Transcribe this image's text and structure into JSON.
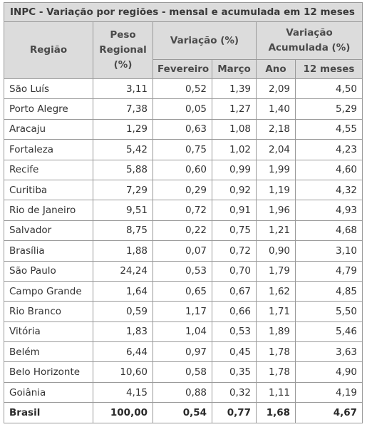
{
  "title": "INPC - Variação por regiões - mensal e acumulada em 12 meses",
  "headers": {
    "regiao": "Região",
    "peso": "Peso Regional (%)",
    "variacao": "Variação (%)",
    "acumulada": "Variação Acumulada (%)",
    "fevereiro": "Fevereiro",
    "marco": "Março",
    "ano": "Ano",
    "doze_meses": "12 meses"
  },
  "rows": [
    {
      "regiao": "São Luís",
      "peso": "3,11",
      "fevereiro": "0,52",
      "marco": "1,39",
      "ano": "2,09",
      "doze_meses": "4,50"
    },
    {
      "regiao": "Porto Alegre",
      "peso": "7,38",
      "fevereiro": "0,05",
      "marco": "1,27",
      "ano": "1,40",
      "doze_meses": "5,29"
    },
    {
      "regiao": "Aracaju",
      "peso": "1,29",
      "fevereiro": "0,63",
      "marco": "1,08",
      "ano": "2,18",
      "doze_meses": "4,55"
    },
    {
      "regiao": "Fortaleza",
      "peso": "5,42",
      "fevereiro": "0,75",
      "marco": "1,02",
      "ano": "2,04",
      "doze_meses": "4,23"
    },
    {
      "regiao": "Recife",
      "peso": "5,88",
      "fevereiro": "0,60",
      "marco": "0,99",
      "ano": "1,99",
      "doze_meses": "4,60"
    },
    {
      "regiao": "Curitiba",
      "peso": "7,29",
      "fevereiro": "0,29",
      "marco": "0,92",
      "ano": "1,19",
      "doze_meses": "4,32"
    },
    {
      "regiao": "Rio de Janeiro",
      "peso": "9,51",
      "fevereiro": "0,72",
      "marco": "0,91",
      "ano": "1,96",
      "doze_meses": "4,93"
    },
    {
      "regiao": "Salvador",
      "peso": "8,75",
      "fevereiro": "0,22",
      "marco": "0,75",
      "ano": "1,21",
      "doze_meses": "4,68"
    },
    {
      "regiao": "Brasília",
      "peso": "1,88",
      "fevereiro": "0,07",
      "marco": "0,72",
      "ano": "0,90",
      "doze_meses": "3,10"
    },
    {
      "regiao": "São Paulo",
      "peso": "24,24",
      "fevereiro": "0,53",
      "marco": "0,70",
      "ano": "1,79",
      "doze_meses": "4,79"
    },
    {
      "regiao": "Campo Grande",
      "peso": "1,64",
      "fevereiro": "0,65",
      "marco": "0,67",
      "ano": "1,62",
      "doze_meses": "4,85"
    },
    {
      "regiao": "Rio Branco",
      "peso": "0,59",
      "fevereiro": "1,17",
      "marco": "0,66",
      "ano": "1,71",
      "doze_meses": "5,50"
    },
    {
      "regiao": "Vitória",
      "peso": "1,83",
      "fevereiro": "1,04",
      "marco": "0,53",
      "ano": "1,89",
      "doze_meses": "5,46"
    },
    {
      "regiao": "Belém",
      "peso": "6,44",
      "fevereiro": "0,97",
      "marco": "0,45",
      "ano": "1,78",
      "doze_meses": "3,63"
    },
    {
      "regiao": "Belo Horizonte",
      "peso": "10,60",
      "fevereiro": "0,58",
      "marco": "0,35",
      "ano": "1,78",
      "doze_meses": "4,90"
    },
    {
      "regiao": "Goiânia",
      "peso": "4,15",
      "fevereiro": "0,88",
      "marco": "0,32",
      "ano": "1,11",
      "doze_meses": "4,19"
    }
  ],
  "total": {
    "regiao": "Brasil",
    "peso": "100,00",
    "fevereiro": "0,54",
    "marco": "0,77",
    "ano": "1,68",
    "doze_meses": "4,67"
  },
  "colors": {
    "header_bg": "#dcdcdc",
    "border": "#9a9a9a",
    "text": "#333333"
  }
}
